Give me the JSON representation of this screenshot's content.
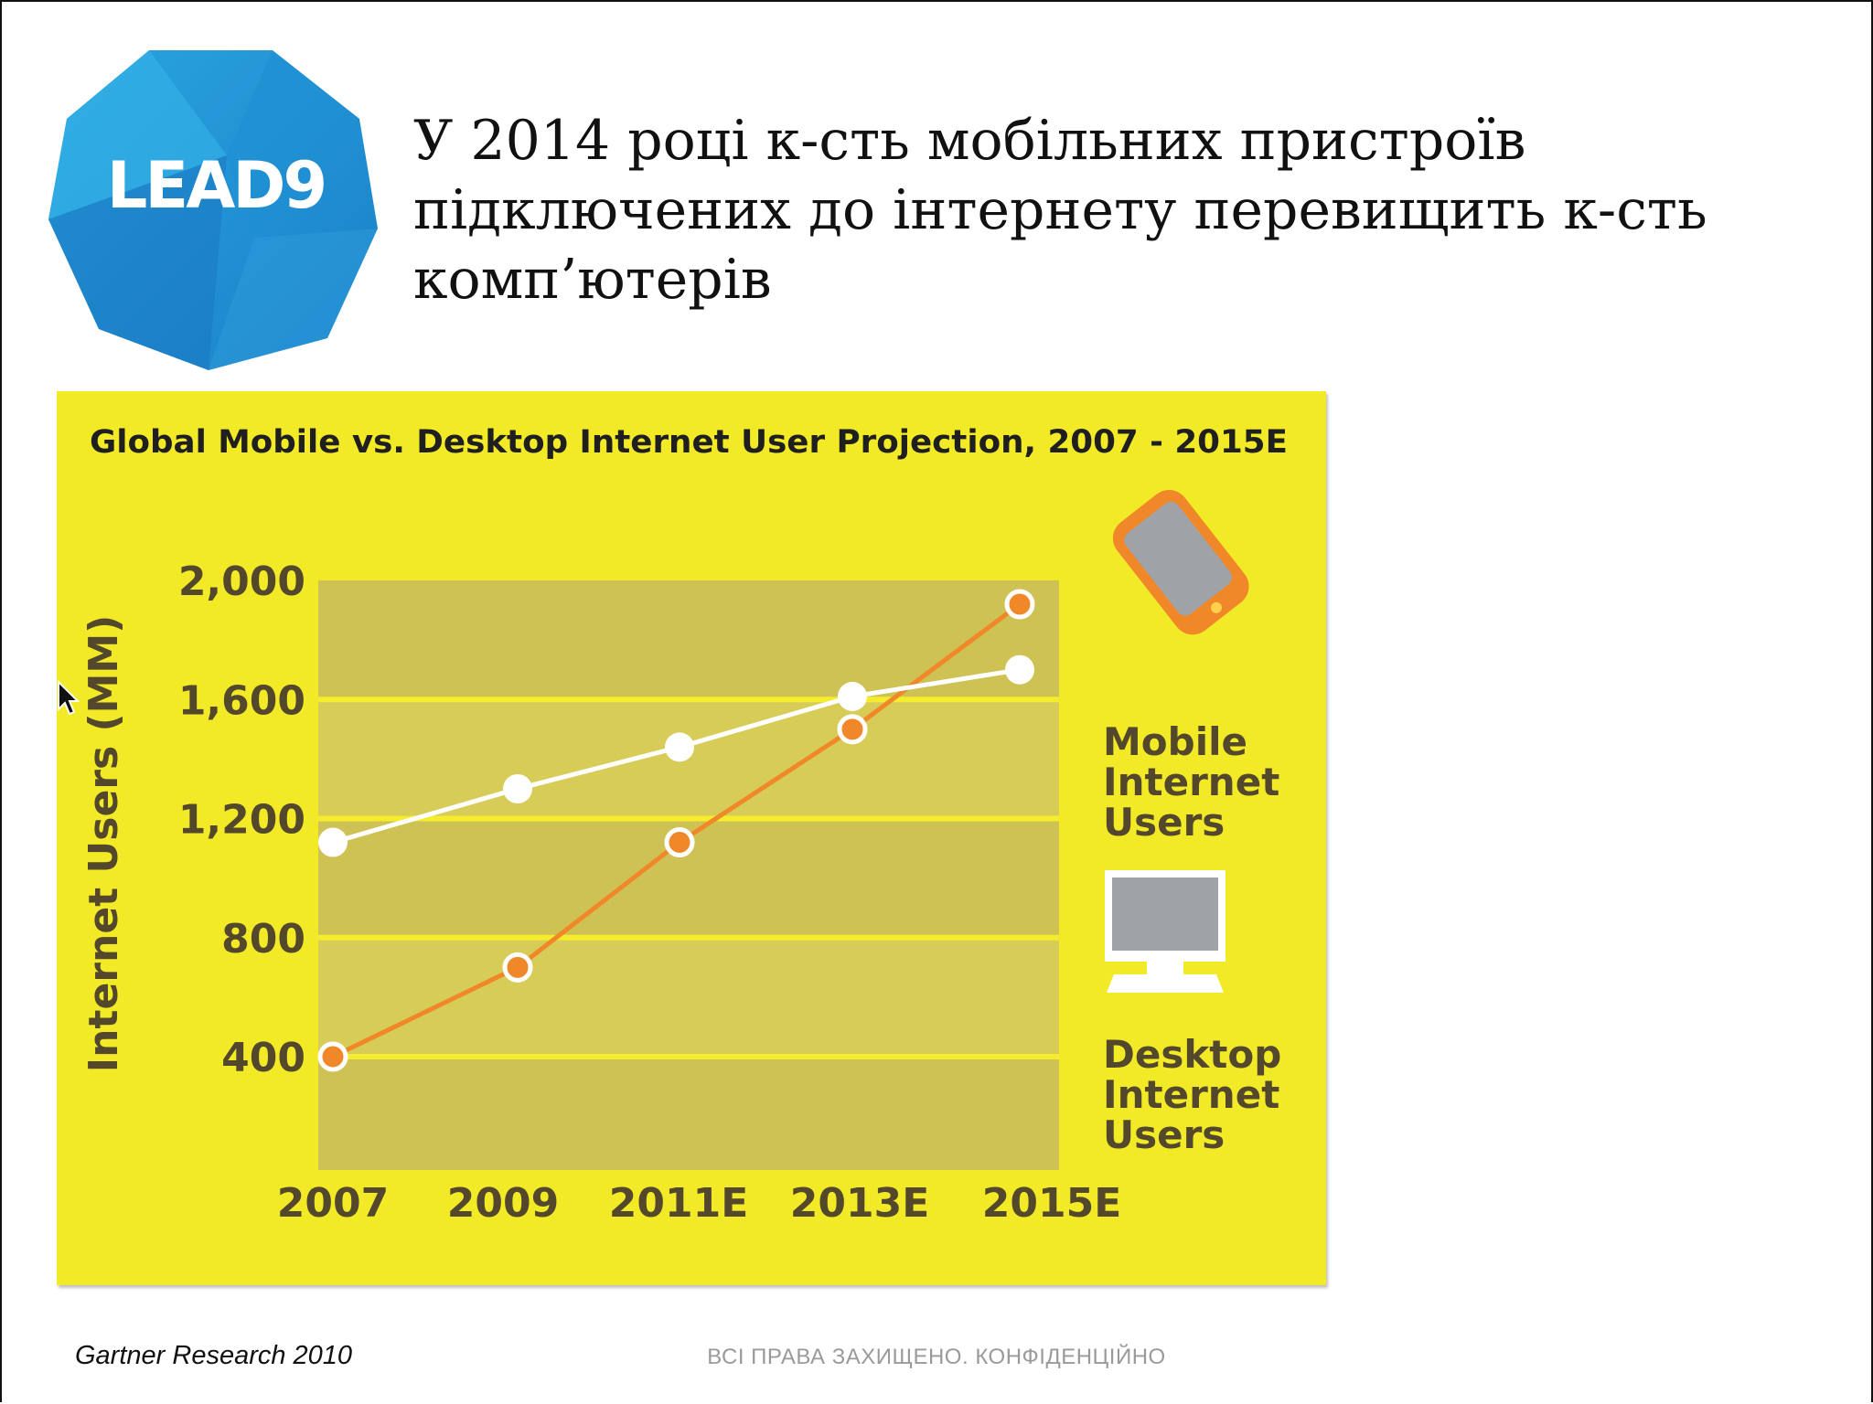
{
  "logo": {
    "text": "LEAD9"
  },
  "title": "У 2014 році к-сть мобільних пристроїв підключених до інтернету перевищить к-сть комп’ютерів",
  "source": "Gartner Research 2010",
  "footer": "ВСІ ПРАВА ЗАХИЩЕНО. КОНФІДЕНЦІЙНО",
  "colors": {
    "panel": "#f2ea26",
    "plot_band_light": "#d8cc58",
    "plot_band_dark": "#cfc254",
    "mobile": "#f0882a",
    "desktop": "#ffffff",
    "axis_text": "#54482c",
    "title_text": "#1f1f1f"
  },
  "chart_data": {
    "type": "line",
    "title": "Global Mobile vs. Desktop Internet User Projection, 2007 - 2015E",
    "xlabel": "",
    "ylabel": "Internet Users (MM)",
    "categories": [
      "2007",
      "2009",
      "2011E",
      "2013E",
      "2015E"
    ],
    "yticks": [
      "400",
      "800",
      "1,200",
      "1,600",
      "2,000"
    ],
    "ylim": [
      0,
      2000
    ],
    "grid": true,
    "legend_position": "right",
    "series": [
      {
        "name": "Mobile Internet Users",
        "legend_lines": [
          "Mobile",
          "Internet",
          "Users"
        ],
        "color": "#f0882a",
        "icon": "mobile-phone-icon",
        "values": [
          400,
          700,
          1120,
          1500,
          1920
        ]
      },
      {
        "name": "Desktop Internet Users",
        "legend_lines": [
          "Desktop",
          "Internet",
          "Users"
        ],
        "color": "#ffffff",
        "icon": "desktop-monitor-icon",
        "values": [
          1120,
          1300,
          1440,
          1610,
          1700
        ]
      }
    ]
  }
}
